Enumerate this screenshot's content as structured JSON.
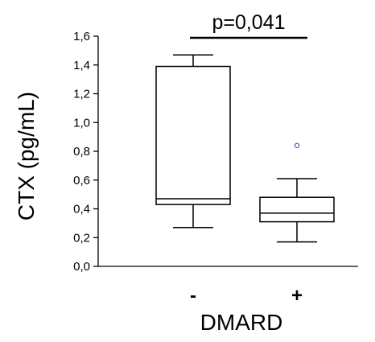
{
  "chart_data": {
    "type": "box",
    "ylabel": "CTX (pg/mL)",
    "xlabel": "DMARD",
    "ylim": [
      0,
      1.6
    ],
    "yticks": [
      0.0,
      0.2,
      0.4,
      0.6,
      0.8,
      1.0,
      1.2,
      1.4,
      1.6
    ],
    "ytick_labels": [
      "0,0",
      "0,2",
      "0,4",
      "0,6",
      "0,8",
      "1,0",
      "1,2",
      "1,4",
      "1,6"
    ],
    "categories": [
      "-",
      "+"
    ],
    "boxes": [
      {
        "category": "-",
        "whisker_low": 0.27,
        "q1": 0.43,
        "median": 0.47,
        "q3": 1.39,
        "whisker_high": 1.47,
        "outliers": []
      },
      {
        "category": "+",
        "whisker_low": 0.17,
        "q1": 0.31,
        "median": 0.37,
        "q3": 0.48,
        "whisker_high": 0.61,
        "outliers": [
          0.84
        ]
      }
    ],
    "annotation": "p=0,041",
    "colors": {
      "box_stroke": "#000000",
      "outlier": "#3b3b9c"
    }
  }
}
